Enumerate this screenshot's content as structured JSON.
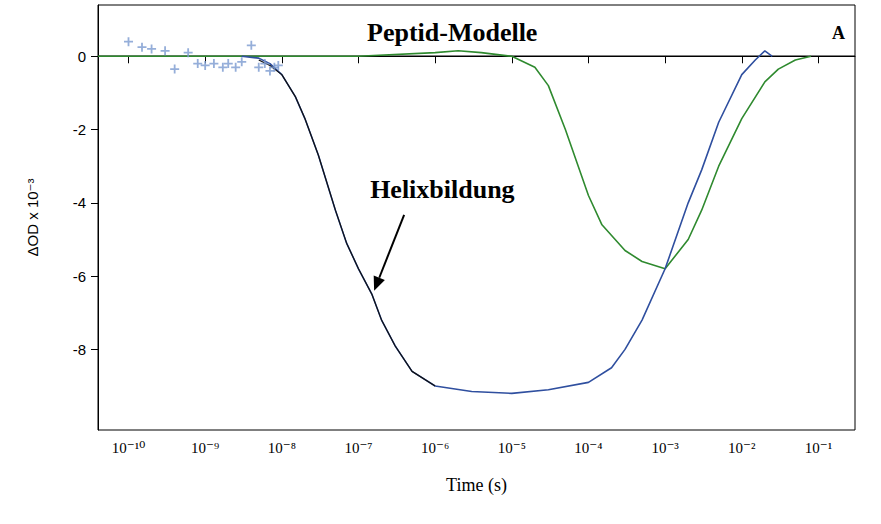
{
  "chart_data": {
    "type": "line",
    "title": "Peptid-Modelle",
    "panel": "A",
    "x_label": "Time (s)",
    "y_label": "ΔOD x 10⁻³",
    "log": "x",
    "grid": false,
    "xlim": [
      4e-11,
      0.3
    ],
    "xticks": [
      {
        "value": 1e-10,
        "label": "10⁻¹⁰"
      },
      {
        "value": 1e-09,
        "label": "10⁻⁹"
      },
      {
        "value": 1e-08,
        "label": "10⁻⁸"
      },
      {
        "value": 1e-07,
        "label": "10⁻⁷"
      },
      {
        "value": 1e-06,
        "label": "10⁻⁶"
      },
      {
        "value": 1e-05,
        "label": "10⁻⁵"
      },
      {
        "value": 0.0001,
        "label": "10⁻⁴"
      },
      {
        "value": 0.001,
        "label": "10⁻³"
      },
      {
        "value": 0.01,
        "label": "10⁻²"
      },
      {
        "value": 0.1,
        "label": "10⁻¹"
      }
    ],
    "ylim": [
      -10.2,
      1.4
    ],
    "yticks": [
      -8,
      -6,
      -4,
      -2,
      0
    ],
    "hline": 0,
    "annotation": {
      "text": "Helixbildung",
      "x": 1.6e-07,
      "y": -6.4
    },
    "series": [
      {
        "type": "line",
        "color": "#2f8a2f",
        "line_style": "solid",
        "x": [
          4e-11,
          1e-10,
          1e-09,
          1e-08,
          1e-07,
          1e-06,
          2e-06,
          4e-06,
          1e-05,
          2e-05,
          3e-05,
          5e-05,
          0.0001,
          0.00015,
          0.0003,
          0.0005,
          0.001,
          0.002,
          0.003,
          0.005,
          0.01,
          0.02,
          0.03,
          0.05,
          0.08
        ],
        "values": [
          0,
          0,
          0,
          0,
          0,
          0.1,
          0.15,
          0.1,
          0,
          -0.3,
          -0.8,
          -2.0,
          -3.8,
          -4.6,
          -5.3,
          -5.6,
          -5.8,
          -5.0,
          -4.2,
          -3.0,
          -1.7,
          -0.7,
          -0.35,
          -0.1,
          0
        ]
      },
      {
        "type": "line",
        "color": "#2f4f9f",
        "line_style": "solid",
        "x": [
          3e-09,
          5e-09,
          7e-09,
          1e-08,
          1.5e-08,
          2e-08,
          3e-08,
          5e-08,
          7e-08,
          1e-07,
          1.5e-07,
          2e-07,
          3e-07,
          5e-07,
          1e-06,
          3e-06,
          1e-05,
          3e-05,
          0.0001,
          0.0002,
          0.0003,
          0.0005,
          0.001,
          0.002,
          0.003,
          0.005,
          0.01,
          0.015,
          0.02,
          0.025
        ],
        "values": [
          0,
          -0.05,
          -0.2,
          -0.5,
          -1.1,
          -1.7,
          -2.7,
          -4.2,
          -5.1,
          -5.8,
          -6.5,
          -7.2,
          -7.9,
          -8.6,
          -9.0,
          -9.15,
          -9.2,
          -9.1,
          -8.9,
          -8.5,
          -8.0,
          -7.2,
          -5.8,
          -4.0,
          -3.1,
          -1.8,
          -0.5,
          -0.1,
          0.15,
          0
        ]
      },
      {
        "type": "line",
        "color": "#111111",
        "line_style": "solid",
        "x": [
          5e-09,
          7e-09,
          1e-08,
          1.5e-08,
          2e-08,
          3e-08,
          5e-08,
          7e-08,
          1e-07,
          1.5e-07,
          2e-07,
          3e-07,
          5e-07,
          1e-06
        ],
        "values": [
          -0.1,
          -0.25,
          -0.5,
          -1.1,
          -1.7,
          -2.7,
          -4.2,
          -5.1,
          -5.8,
          -6.5,
          -7.2,
          -7.9,
          -8.6,
          -9.0
        ]
      },
      {
        "type": "scatter",
        "color": "#7b9ad0",
        "marker": "plus",
        "x": [
          1e-10,
          1.5e-10,
          2e-10,
          3e-10,
          4e-10,
          6e-10,
          8e-10,
          1e-09,
          1.3e-09,
          1.7e-09,
          2e-09,
          2.5e-09,
          3e-09,
          4e-09,
          5e-09,
          6e-09,
          7e-09,
          8e-09,
          9e-09
        ],
        "values": [
          0.4,
          0.25,
          0.2,
          0.15,
          -0.35,
          0.1,
          -0.2,
          -0.25,
          -0.2,
          -0.3,
          -0.2,
          -0.3,
          -0.15,
          0.3,
          -0.3,
          -0.2,
          -0.4,
          -0.3,
          -0.25
        ]
      }
    ]
  }
}
